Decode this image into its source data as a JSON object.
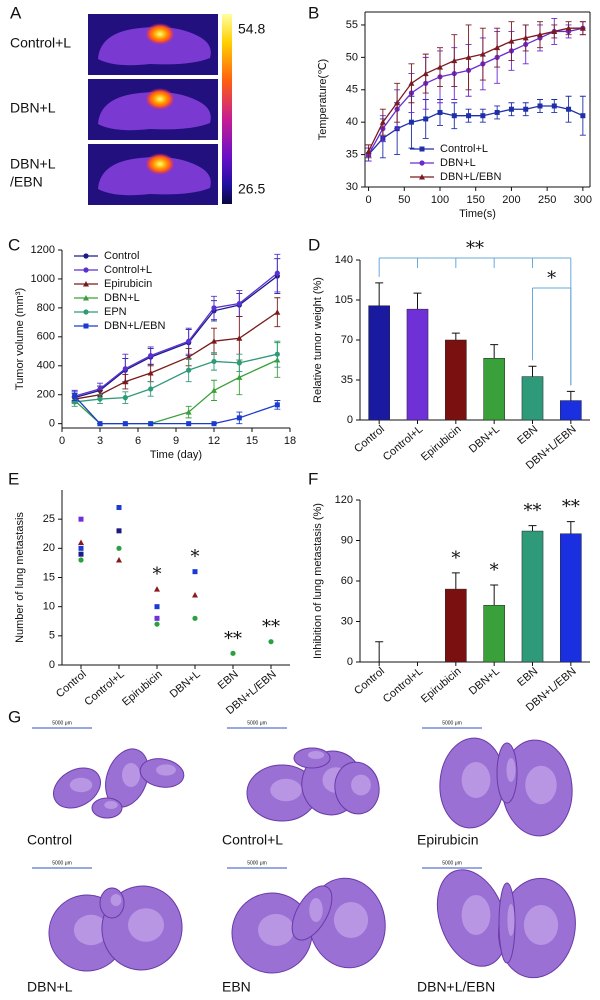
{
  "panel_a": {
    "label": "A",
    "rows": [
      [
        "Control+L"
      ],
      [
        "DBN+L"
      ],
      [
        "DBN+L",
        "/EBN"
      ]
    ],
    "colorbar": {
      "max": 54.8,
      "min": 26.5
    }
  },
  "chart_data": [
    {
      "type": "line",
      "label": "B",
      "xlabel": "Time(s)",
      "ylabel": "Temperature(℃)",
      "x": [
        0,
        20,
        40,
        60,
        80,
        100,
        120,
        140,
        160,
        180,
        200,
        220,
        240,
        260,
        280,
        300
      ],
      "xlim": [
        -5,
        310
      ],
      "xticks": [
        0,
        50,
        100,
        150,
        200,
        250,
        300
      ],
      "ylim": [
        30,
        57
      ],
      "yticks": [
        30,
        35,
        40,
        45,
        50,
        55
      ],
      "frame": true,
      "legend": "lower center",
      "series": [
        {
          "name": "Control+L",
          "color": "#1f2fa8",
          "marker": "square",
          "values": [
            35,
            37.5,
            39,
            40,
            40.5,
            41.5,
            41,
            41,
            41,
            41.5,
            42,
            42,
            42.5,
            42.5,
            42,
            41
          ],
          "errors": [
            1,
            3,
            4,
            4,
            3,
            2,
            2,
            1,
            1,
            1,
            1,
            1,
            1,
            1,
            2,
            3
          ]
        },
        {
          "name": "DBN+L",
          "color": "#6a2ad0",
          "marker": "circle",
          "values": [
            35,
            39,
            42,
            44.5,
            46,
            47,
            47.5,
            48,
            49,
            50,
            51,
            52,
            53,
            54,
            54,
            54.5
          ],
          "errors": [
            1,
            2,
            3,
            3,
            4,
            4,
            4,
            4,
            4,
            4,
            3,
            3,
            2,
            2,
            1,
            1
          ]
        },
        {
          "name": "DBN+L/EBN",
          "color": "#7a1a22",
          "marker": "triangle",
          "values": [
            35.5,
            40,
            43,
            46,
            47.5,
            48.5,
            49.5,
            50,
            50.5,
            51.5,
            52.5,
            53,
            53.5,
            54,
            54.5,
            54.5
          ],
          "errors": [
            1,
            2,
            3,
            3,
            3,
            3,
            4,
            5,
            4,
            3,
            3,
            2,
            2,
            1,
            1,
            1
          ]
        }
      ]
    },
    {
      "type": "line",
      "label": "C",
      "xlabel": "Time (day)",
      "ylabel": "Tumor volume (mm³)",
      "x": [
        1,
        3,
        5,
        7,
        10,
        12,
        14,
        17
      ],
      "xlim": [
        0,
        18
      ],
      "xticks": [
        0,
        3,
        6,
        9,
        12,
        15,
        18
      ],
      "ylim": [
        -30,
        1200
      ],
      "yticks": [
        0,
        200,
        400,
        600,
        800,
        1000,
        1200
      ],
      "frame": false,
      "legend": "upper left",
      "series": [
        {
          "name": "Control",
          "color": "#1a1a8c",
          "marker": "circle",
          "values": [
            180,
            230,
            370,
            460,
            560,
            780,
            820,
            1020
          ],
          "errors": [
            30,
            30,
            80,
            60,
            90,
            70,
            80,
            120
          ]
        },
        {
          "name": "Control+L",
          "color": "#5a30d0",
          "marker": "circle",
          "values": [
            190,
            240,
            380,
            470,
            570,
            800,
            830,
            1040
          ],
          "errors": [
            40,
            40,
            100,
            60,
            90,
            80,
            90,
            130
          ]
        },
        {
          "name": "Epirubicin",
          "color": "#7a1a1a",
          "marker": "triangle",
          "values": [
            170,
            200,
            290,
            350,
            460,
            570,
            590,
            770
          ],
          "errors": [
            20,
            30,
            50,
            60,
            60,
            90,
            150,
            100
          ]
        },
        {
          "name": "DBN+L",
          "color": "#3aa03a",
          "marker": "triangle",
          "values": [
            160,
            0,
            0,
            0,
            80,
            230,
            320,
            440
          ],
          "errors": [
            20,
            0,
            0,
            0,
            40,
            70,
            120,
            120
          ]
        },
        {
          "name": "EPN",
          "color": "#2e9a7a",
          "marker": "circle",
          "values": [
            150,
            170,
            180,
            240,
            370,
            430,
            420,
            480
          ],
          "errors": [
            30,
            30,
            40,
            50,
            80,
            60,
            60,
            90
          ]
        },
        {
          "name": "DBN+L/EBN",
          "color": "#1a3ad0",
          "marker": "square",
          "values": [
            190,
            0,
            0,
            0,
            0,
            0,
            40,
            130
          ],
          "errors": [
            30,
            0,
            0,
            0,
            0,
            0,
            40,
            30
          ]
        }
      ]
    },
    {
      "type": "bar",
      "label": "D",
      "ylabel": "Relative tumor weight (%)",
      "categories": [
        "Control",
        "Control+L",
        "Epirubicin",
        "DBN+L",
        "EBN",
        "DBN+L/EBN"
      ],
      "values": [
        100,
        97,
        70,
        54,
        38,
        17
      ],
      "errors": [
        20,
        14,
        6,
        12,
        9,
        8
      ],
      "colors": [
        "#1a1aa0",
        "#7030d8",
        "#7a1010",
        "#3aa03a",
        "#2e9a7a",
        "#1a30e0"
      ],
      "ylim": [
        0,
        140
      ],
      "yticks": [
        0,
        35,
        70,
        105,
        140
      ],
      "annotations": [
        {
          "text": "**",
          "from": "Control",
          "to": "DBN+L/EBN"
        },
        {
          "text": "*",
          "from": "EBN",
          "to": "DBN+L/EBN"
        }
      ]
    },
    {
      "type": "scatter",
      "label": "E",
      "ylabel": "Number of lung metastasis",
      "categories": [
        "Control",
        "Control+L",
        "Epirubicin",
        "DBN+L",
        "EBN",
        "DBN+L/EBN"
      ],
      "ylim": [
        0,
        30
      ],
      "yticks": [
        0,
        5,
        10,
        15,
        20,
        25
      ],
      "series": [
        {
          "color": "#7030d8",
          "values": [
            25,
            null,
            8,
            null,
            null,
            null
          ]
        },
        {
          "color": "#1a3ad0",
          "values": [
            20,
            27,
            10,
            16,
            null,
            null
          ]
        },
        {
          "color": "#1a1a80",
          "values": [
            19,
            23,
            null,
            null,
            null,
            null
          ]
        },
        {
          "color": "#8a1a1a",
          "values": [
            21,
            18,
            13,
            12,
            null,
            null
          ]
        },
        {
          "color": "#2aa040",
          "values": [
            18,
            20,
            7,
            8,
            2,
            4
          ]
        }
      ],
      "annotations": [
        {
          "text": "*",
          "at": "Epirubicin"
        },
        {
          "text": "*",
          "at": "DBN+L"
        },
        {
          "text": "**",
          "at": "EBN"
        },
        {
          "text": "**",
          "at": "DBN+L/EBN"
        }
      ]
    },
    {
      "type": "bar",
      "label": "F",
      "ylabel": "Inhibition of lung metastasis (%)",
      "categories": [
        "Control",
        "Control+L",
        "Epirubicin",
        "DBN+L",
        "EBN",
        "DBN+L/EBN"
      ],
      "values": [
        0,
        0,
        54,
        42,
        97,
        95
      ],
      "errors": [
        15,
        0,
        12,
        15,
        4,
        9
      ],
      "colors": [
        "#1a1aa0",
        "#7030d8",
        "#7a1010",
        "#3aa03a",
        "#2e9a7a",
        "#1a30e0"
      ],
      "ylim": [
        0,
        120
      ],
      "yticks": [
        0,
        30,
        60,
        90,
        120
      ],
      "annotations": [
        {
          "text": "*",
          "at": "Epirubicin"
        },
        {
          "text": "*",
          "at": "DBN+L"
        },
        {
          "text": "**",
          "at": "EBN"
        },
        {
          "text": "**",
          "at": "DBN+L/EBN"
        }
      ]
    }
  ],
  "panel_g": {
    "label": "G",
    "images": [
      {
        "caption": "Control",
        "scale_bar": "5000 μm"
      },
      {
        "caption": "Control+L",
        "scale_bar": "5000 μm"
      },
      {
        "caption": "Epirubicin",
        "scale_bar": "5000 μm"
      },
      {
        "caption": "DBN+L",
        "scale_bar": "5000 μm"
      },
      {
        "caption": "EBN",
        "scale_bar": "5000 μm"
      },
      {
        "caption": "DBN+L/EBN",
        "scale_bar": "5000 μm"
      }
    ]
  }
}
